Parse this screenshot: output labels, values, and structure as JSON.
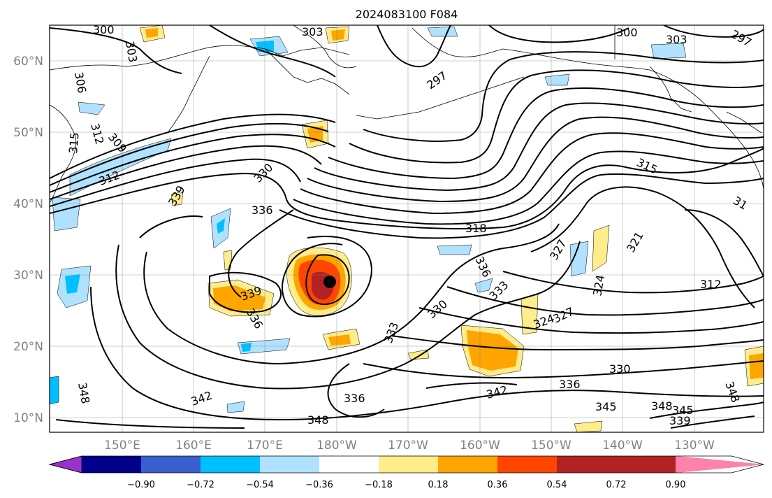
{
  "map": {
    "title": "2024083100 F084",
    "lat_labels": [
      "60°N",
      "50°N",
      "40°N",
      "30°N",
      "20°N",
      "10°N"
    ],
    "lon_labels": [
      "150°E",
      "160°E",
      "170°E",
      "180°W",
      "170°W",
      "160°W",
      "150°W",
      "140°W",
      "130°W"
    ],
    "storm_marker": {
      "lat": 29,
      "lon": 181
    },
    "contour_labels": [
      "300",
      "303",
      "303",
      "300",
      "303",
      "297",
      "306",
      "297",
      "315",
      "312",
      "309",
      "312",
      "330",
      "339",
      "336",
      "327",
      "321",
      "318",
      "315",
      "336",
      "333",
      "330",
      "324",
      "312",
      "339",
      "336",
      "333",
      "324",
      "327",
      "330",
      "336",
      "342",
      "342",
      "336",
      "345",
      "348",
      "345",
      "348",
      "339",
      "348",
      "348",
      "31"
    ]
  },
  "colorbar": {
    "ticks": [
      "−0.90",
      "−0.72",
      "−0.54",
      "−0.36",
      "−0.18",
      "0.18",
      "0.36",
      "0.54",
      "0.72",
      "0.90"
    ],
    "colors": [
      "#9932cc",
      "#00008b",
      "#3a5fcd",
      "#00bfff",
      "#b0e2ff",
      "#ffffff",
      "#ffec8b",
      "#ffa500",
      "#ff4500",
      "#b22222",
      "#ff82ab"
    ]
  }
}
